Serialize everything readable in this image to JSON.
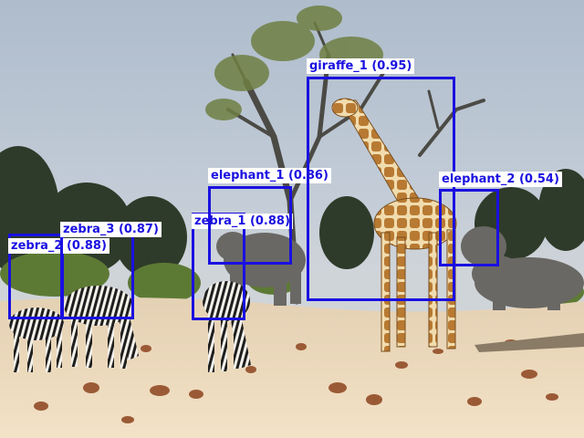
{
  "scene": {
    "description_icon": "savanna-photo",
    "colors": {
      "box": "#1a10e0",
      "label_text": "#1a10e0",
      "label_bg": "#ffffff"
    }
  },
  "detections": [
    {
      "label": "zebra_2 (0.88)"
    },
    {
      "label": "zebra_3 (0.87)"
    },
    {
      "label": "zebra_1 (0.88)"
    },
    {
      "label": "elephant_1 (0.86)"
    },
    {
      "label": "giraffe_1 (0.95)"
    },
    {
      "label": "elephant_2 (0.54)"
    }
  ]
}
